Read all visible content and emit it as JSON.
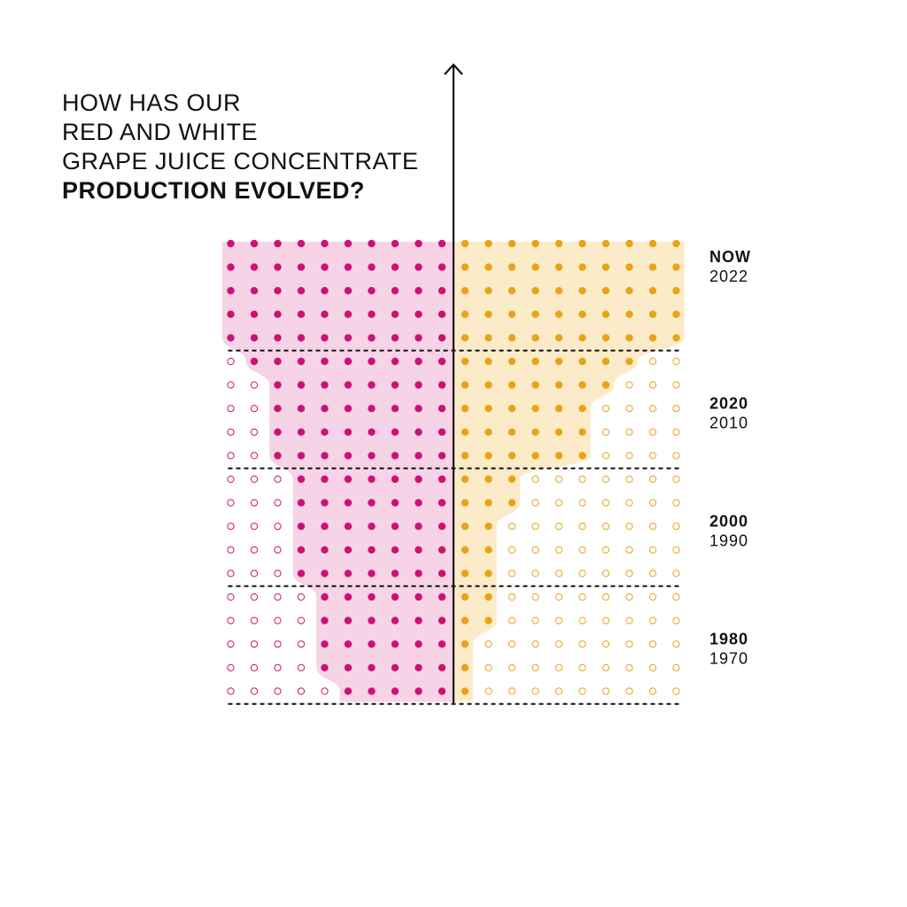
{
  "title": {
    "line1": "HOW HAS OUR",
    "line2": "RED AND WHITE",
    "line3": "GRAPE JUICE CONCENTRATE",
    "line4": "PRODUCTION EVOLVED?"
  },
  "colors": {
    "red": "#cc1177",
    "red_fill": "#f6d3e6",
    "white": "#e8a317",
    "white_fill": "#fcebc9",
    "axis": "#111111"
  },
  "chart_data": {
    "type": "dot-matrix",
    "title": "HOW HAS OUR RED AND WHITE GRAPE JUICE CONCENTRATE PRODUCTION EVOLVED?",
    "dots_per_row": 10,
    "periods": [
      {
        "label": "NOW",
        "sublabel": "2022"
      },
      {
        "label": "2020",
        "sublabel": "2010"
      },
      {
        "label": "2000",
        "sublabel": "1990"
      },
      {
        "label": "1980",
        "sublabel": "1970"
      }
    ],
    "series": [
      {
        "name": "red",
        "side": "left",
        "filled_dots_per_row": [
          10,
          10,
          10,
          10,
          10,
          9,
          8,
          8,
          8,
          8,
          7,
          7,
          7,
          7,
          7,
          6,
          6,
          6,
          6,
          5
        ]
      },
      {
        "name": "white",
        "side": "right",
        "filled_dots_per_row": [
          10,
          10,
          10,
          10,
          10,
          8,
          7,
          6,
          6,
          6,
          3,
          3,
          2,
          2,
          2,
          2,
          2,
          1,
          1,
          1
        ]
      }
    ]
  }
}
